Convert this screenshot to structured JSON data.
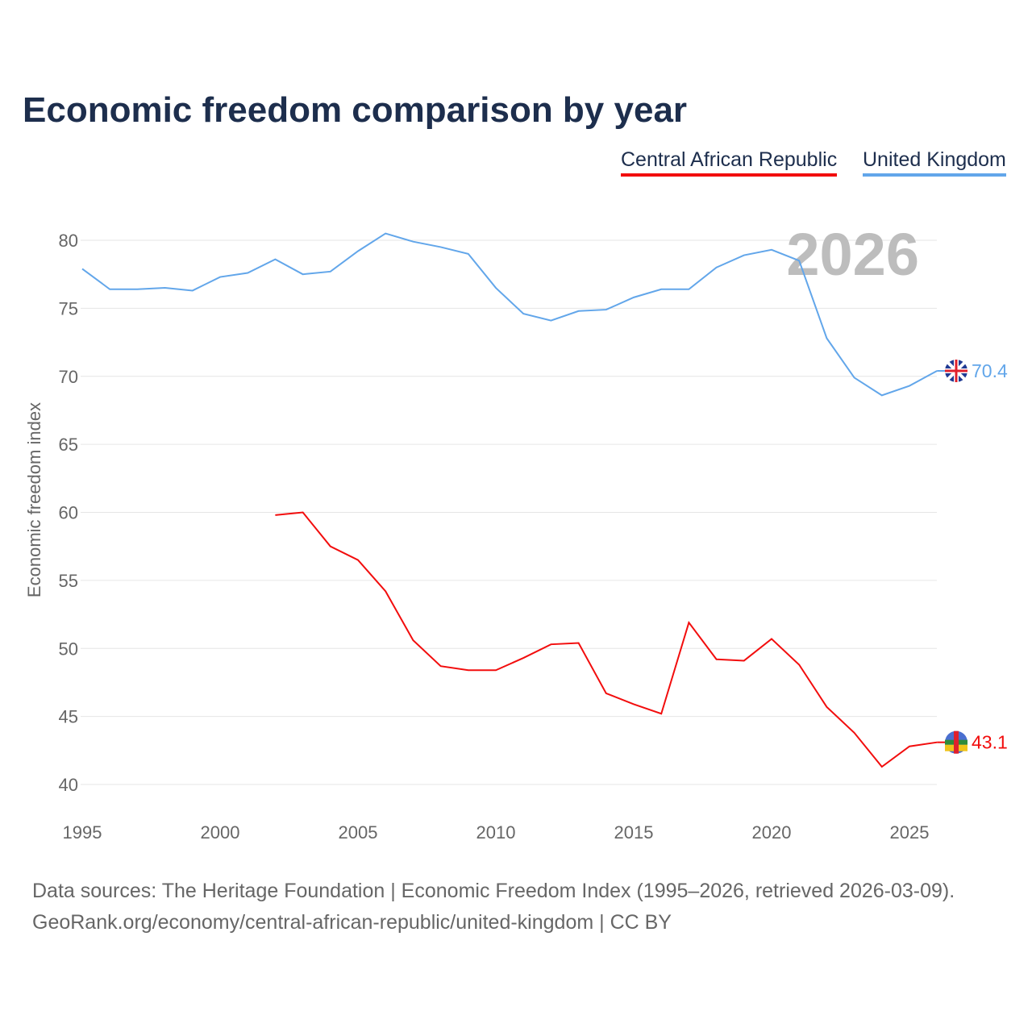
{
  "chart_data": {
    "type": "line",
    "title": "Economic freedom comparison by year",
    "ylabel": "Economic freedom index",
    "xlabel": "",
    "ylim": [
      40,
      82
    ],
    "xlim": [
      1995,
      2026
    ],
    "yticks": [
      40,
      45,
      50,
      55,
      60,
      65,
      70,
      75,
      80
    ],
    "xticks": [
      1995,
      2000,
      2005,
      2010,
      2015,
      2020,
      2025
    ],
    "grid": true,
    "legend_position": "top-right",
    "year_watermark": "2026",
    "series": [
      {
        "name": "Central African Republic",
        "color": "#f20d0d",
        "end_label": "43.1",
        "x": [
          2002,
          2003,
          2004,
          2005,
          2006,
          2007,
          2008,
          2009,
          2010,
          2011,
          2012,
          2013,
          2014,
          2015,
          2016,
          2017,
          2018,
          2019,
          2020,
          2021,
          2022,
          2023,
          2024,
          2025,
          2026
        ],
        "values": [
          59.8,
          60.0,
          57.5,
          56.5,
          54.2,
          50.6,
          48.7,
          48.4,
          48.4,
          49.3,
          50.3,
          50.4,
          46.7,
          45.9,
          45.2,
          51.9,
          49.2,
          49.1,
          50.7,
          48.8,
          45.7,
          43.8,
          41.3,
          42.8,
          43.1
        ]
      },
      {
        "name": "United Kingdom",
        "color": "#62a6ea",
        "end_label": "70.4",
        "x": [
          1995,
          1996,
          1997,
          1998,
          1999,
          2000,
          2001,
          2002,
          2003,
          2004,
          2005,
          2006,
          2007,
          2008,
          2009,
          2010,
          2011,
          2012,
          2013,
          2014,
          2015,
          2016,
          2017,
          2018,
          2019,
          2020,
          2021,
          2022,
          2023,
          2024,
          2025,
          2026
        ],
        "values": [
          77.9,
          76.4,
          76.4,
          76.5,
          76.3,
          77.3,
          77.6,
          78.6,
          77.5,
          77.7,
          79.2,
          80.5,
          79.9,
          79.5,
          79.0,
          76.5,
          74.6,
          74.1,
          74.8,
          74.9,
          75.8,
          76.4,
          76.4,
          78.0,
          78.9,
          79.3,
          78.5,
          72.8,
          69.9,
          68.6,
          69.3,
          70.4
        ]
      }
    ]
  },
  "source": {
    "line1": "Data sources: The Heritage Foundation | Economic Freedom Index (1995–2026, retrieved 2026-03-09).",
    "line2": "GeoRank.org/economy/central-african-republic/united-kingdom | CC BY"
  }
}
